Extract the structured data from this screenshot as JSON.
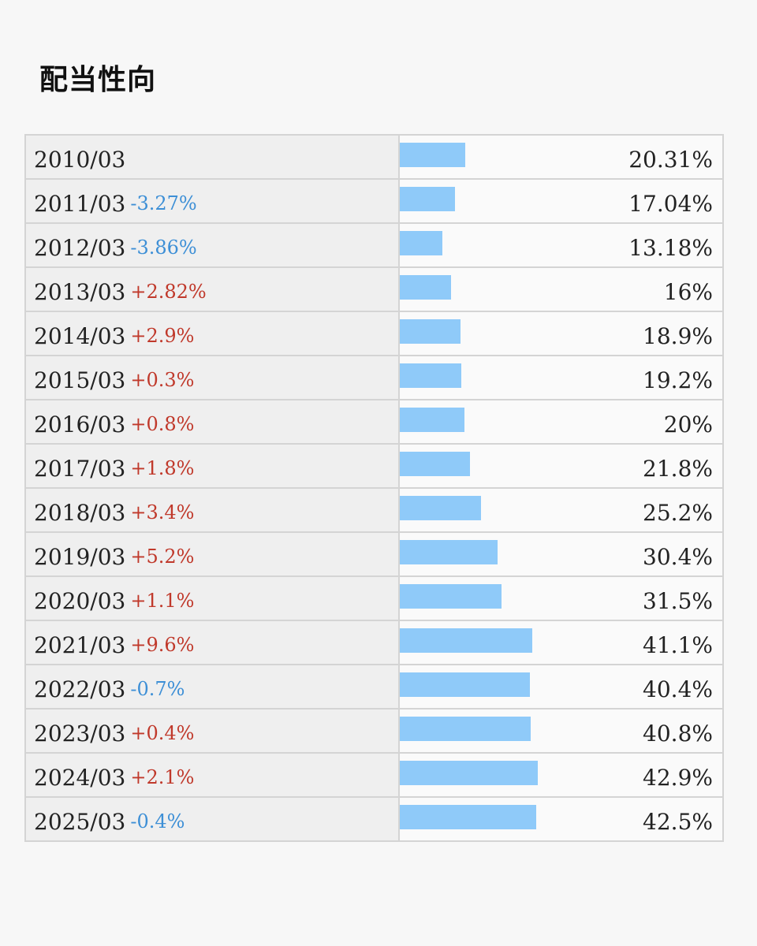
{
  "page": {
    "title": "配当性向"
  },
  "colors": {
    "bar": "#8fcaf9",
    "increase": "#c0392b",
    "decrease": "#3d8fd6"
  },
  "chart_data": {
    "type": "bar",
    "orientation": "horizontal",
    "title": "配当性向",
    "categories": [
      "2010/03",
      "2011/03",
      "2012/03",
      "2013/03",
      "2014/03",
      "2015/03",
      "2016/03",
      "2017/03",
      "2018/03",
      "2019/03",
      "2020/03",
      "2021/03",
      "2022/03",
      "2023/03",
      "2024/03",
      "2025/03"
    ],
    "values": [
      20.31,
      17.04,
      13.18,
      16,
      18.9,
      19.2,
      20,
      21.8,
      25.2,
      30.4,
      31.5,
      41.1,
      40.4,
      40.8,
      42.9,
      42.5
    ],
    "value_labels": [
      "20.31%",
      "17.04%",
      "13.18%",
      "16%",
      "18.9%",
      "19.2%",
      "20%",
      "21.8%",
      "25.2%",
      "30.4%",
      "31.5%",
      "41.1%",
      "40.4%",
      "40.8%",
      "42.9%",
      "42.5%"
    ],
    "changes": [
      "",
      "-3.27%",
      "-3.86%",
      "+2.82%",
      "+2.9%",
      "+0.3%",
      "+0.8%",
      "+1.8%",
      "+3.4%",
      "+5.2%",
      "+1.1%",
      "+9.6%",
      "-0.7%",
      "+0.4%",
      "+2.1%",
      "-0.4%"
    ],
    "xlim": [
      0,
      100
    ],
    "unit": "%"
  }
}
